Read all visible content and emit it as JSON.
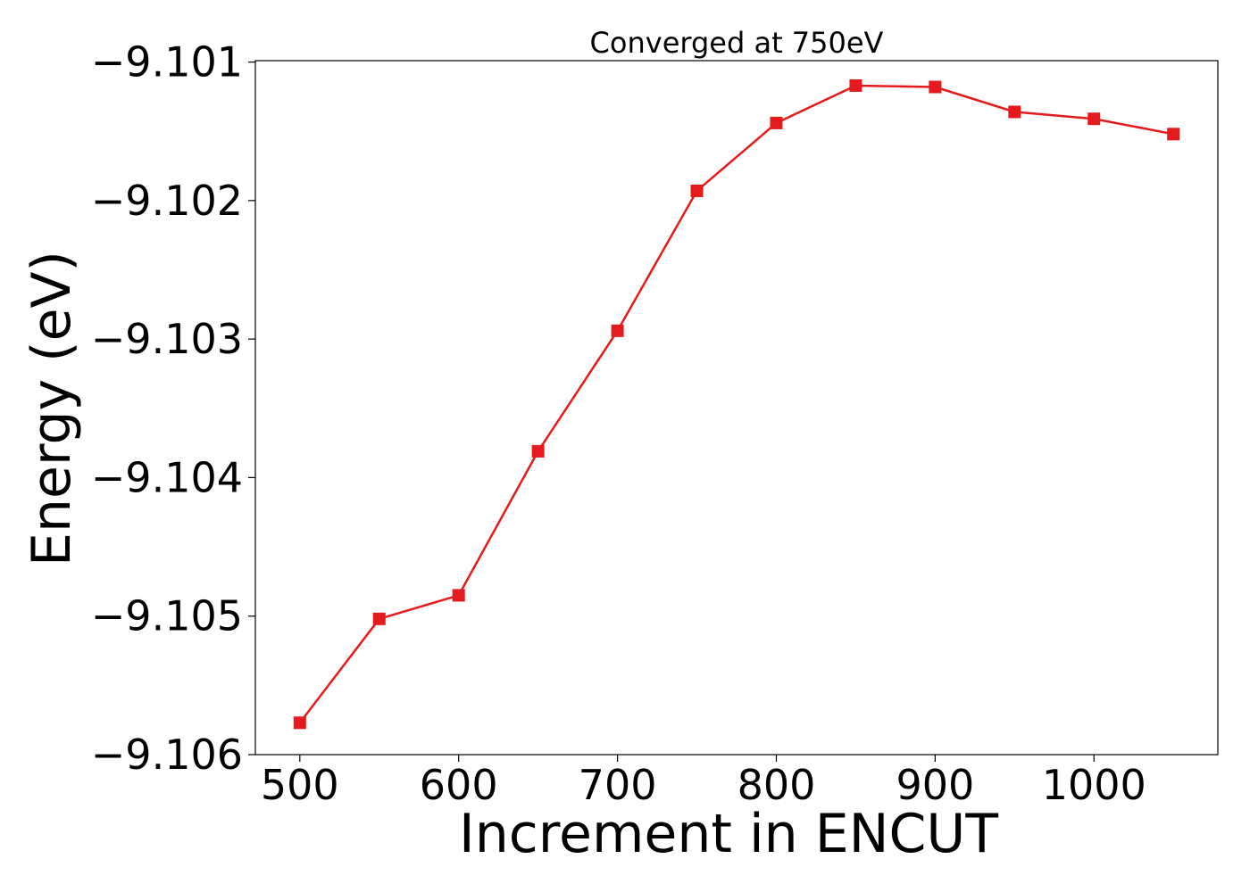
{
  "chart_data": {
    "type": "line",
    "title": "Converged at 750eV",
    "xlabel": "Increment in ENCUT",
    "ylabel": "Energy (eV)",
    "x": [
      500,
      550,
      600,
      650,
      700,
      750,
      800,
      850,
      900,
      950,
      1000,
      1050
    ],
    "series": [
      {
        "values": [
          -9.10577,
          -9.10502,
          -9.10485,
          -9.10381,
          -9.10294,
          -9.10193,
          -9.10144,
          -9.10117,
          -9.10118,
          -9.10136,
          -9.10141,
          -9.10152
        ],
        "color": "#e41a1c",
        "marker": "square"
      }
    ],
    "xlim": [
      472,
      1078
    ],
    "ylim": [
      -9.106,
      -9.10099
    ],
    "x_ticks": [
      500,
      600,
      700,
      800,
      900,
      1000
    ],
    "x_tick_labels": [
      "500",
      "600",
      "700",
      "800",
      "900",
      "1000"
    ],
    "y_ticks": [
      -9.101,
      -9.102,
      -9.103,
      -9.104,
      -9.105,
      -9.106
    ],
    "y_tick_labels": [
      "−9.101",
      "−9.102",
      "−9.103",
      "−9.104",
      "−9.105",
      "−9.106"
    ],
    "grid": false,
    "legend": "none"
  }
}
